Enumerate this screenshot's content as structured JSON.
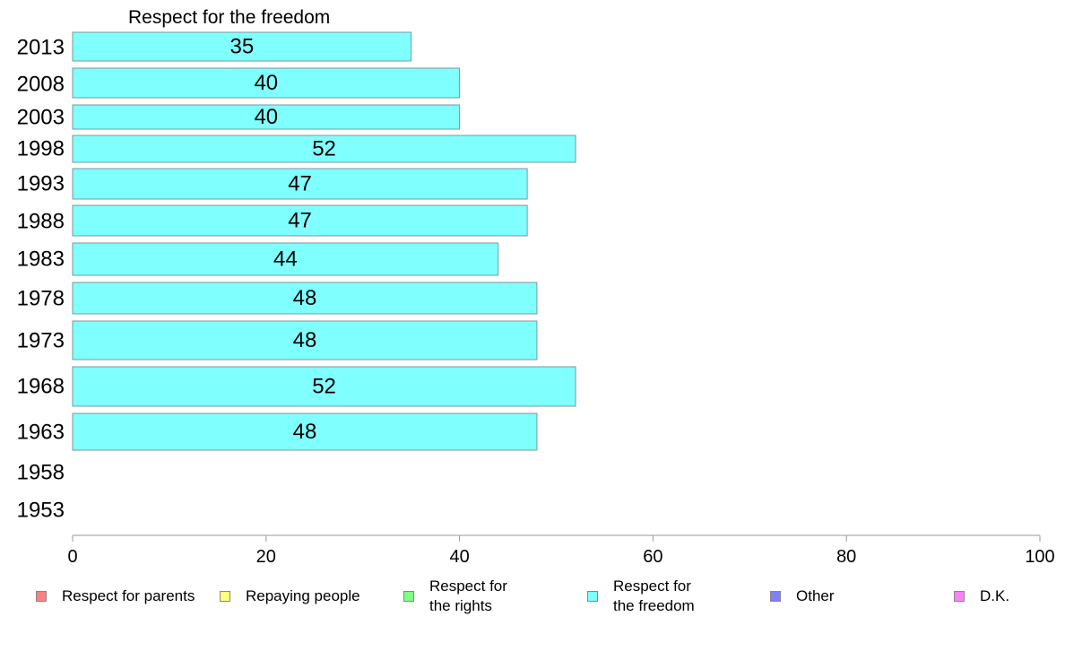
{
  "chart_data": {
    "type": "bar",
    "orientation": "horizontal",
    "title": "Respect for the freedom",
    "categories": [
      "2013",
      "2008",
      "2003",
      "1998",
      "1993",
      "1988",
      "1983",
      "1978",
      "1973",
      "1968",
      "1963",
      "1958",
      "1953"
    ],
    "series": [
      {
        "name": "Respect for the freedom",
        "color": "#80ffff",
        "values": [
          35,
          40,
          40,
          52,
          47,
          47,
          44,
          48,
          48,
          52,
          48,
          null,
          null
        ]
      }
    ],
    "xlim": [
      0,
      100
    ],
    "xticks": [
      "0",
      "20",
      "40",
      "60",
      "80",
      "100"
    ],
    "xlabel": "",
    "ylabel": "",
    "grid": false,
    "legend_position": "bottom"
  },
  "legend": [
    {
      "label": "Respect for parents",
      "color": "#ff8080"
    },
    {
      "label": "Repaying people",
      "color": "#ffff80"
    },
    {
      "label": "Respect for\nthe rights",
      "color": "#80ff80"
    },
    {
      "label": "Respect for\nthe freedom",
      "color": "#80ffff"
    },
    {
      "label": "Other",
      "color": "#8080ff"
    },
    {
      "label": "D.K.",
      "color": "#ff80ff"
    }
  ]
}
